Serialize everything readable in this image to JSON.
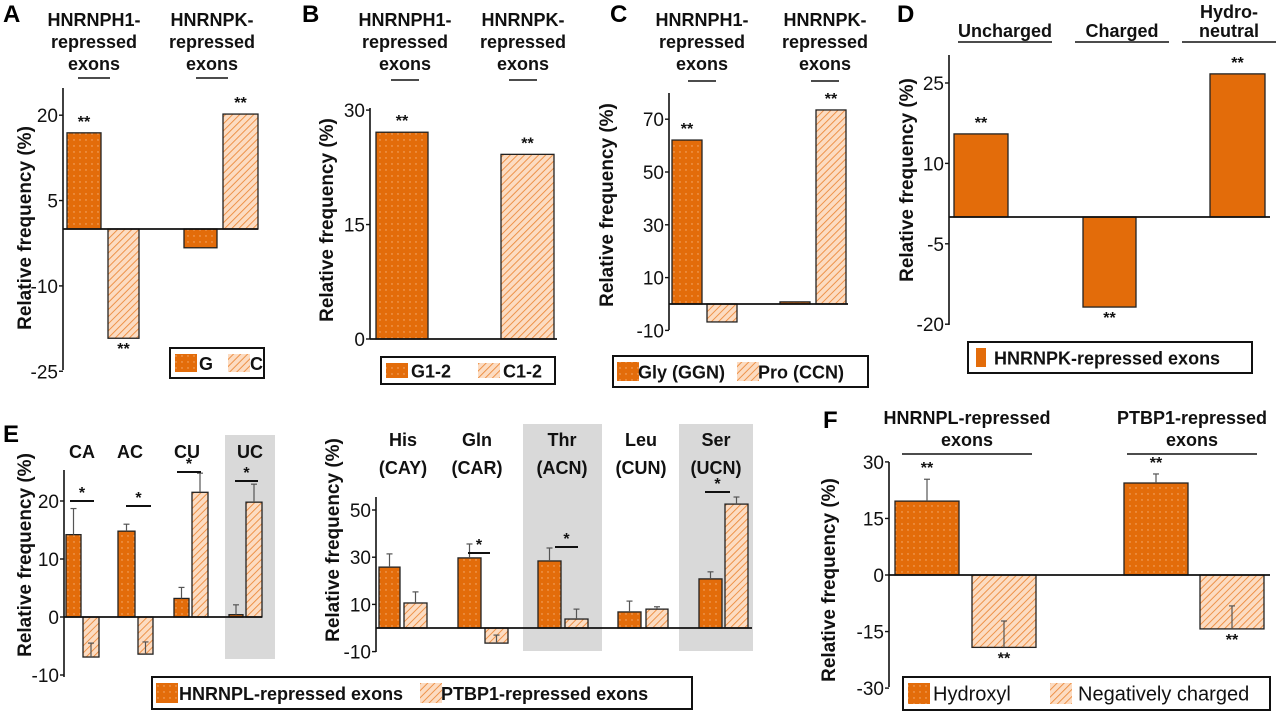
{
  "colors": {
    "orange": "#e36c0a",
    "peach": "#fcdcc2",
    "stripe": "#ec8a3c",
    "band": "#d9d9d9"
  },
  "chart_data": [
    {
      "panel": "A",
      "type": "bar",
      "ylabel": "Relative frequency (%)",
      "yticks": [
        20,
        5,
        -10,
        -25
      ],
      "ylim": [
        -25,
        23
      ],
      "groups": [
        {
          "lines": [
            "HNRNPH1-",
            "repressed",
            "exons"
          ]
        },
        {
          "lines": [
            "HNRNPK-",
            "repressed",
            "exons"
          ]
        }
      ],
      "series": [
        {
          "name": "G",
          "values": [
            16.9,
            -3.3
          ],
          "sig": [
            "**",
            ""
          ]
        },
        {
          "name": "C",
          "values": [
            -19.2,
            20.2
          ],
          "sig": [
            "**",
            "**"
          ]
        }
      ]
    },
    {
      "panel": "B",
      "type": "bar",
      "ylabel": "Relative frequency (%)",
      "yticks": [
        30,
        15,
        0
      ],
      "ylim": [
        0,
        30
      ],
      "groups": [
        {
          "lines": [
            "HNRNPH1-",
            "repressed",
            "exons"
          ]
        },
        {
          "lines": [
            "HNRNPK-",
            "repressed",
            "exons"
          ]
        }
      ],
      "series": [
        {
          "name": "G1-2",
          "values": [
            27.1,
            null
          ],
          "sig": [
            "**",
            ""
          ]
        },
        {
          "name": "C1-2",
          "values": [
            null,
            24.2
          ],
          "sig": [
            "",
            "**"
          ]
        }
      ]
    },
    {
      "panel": "C",
      "type": "bar",
      "ylabel": "Relative frequency (%)",
      "yticks": [
        70,
        50,
        30,
        10,
        -10
      ],
      "ylim": [
        -10,
        80
      ],
      "groups": [
        {
          "lines": [
            "HNRNPH1-",
            "repressed",
            "exons"
          ]
        },
        {
          "lines": [
            "HNRNPK-",
            "repressed",
            "exons"
          ]
        }
      ],
      "series": [
        {
          "name": "Gly (GGN)",
          "values": [
            62.1,
            0.8
          ],
          "sig": [
            "**",
            ""
          ]
        },
        {
          "name": "Pro (CCN)",
          "values": [
            -6.8,
            73.5
          ],
          "sig": [
            "",
            "**"
          ]
        }
      ]
    },
    {
      "panel": "D",
      "type": "bar",
      "ylabel": "Relative frequency (%)",
      "yticks": [
        25,
        10,
        -5,
        -20
      ],
      "ylim": [
        -20,
        30
      ],
      "groups": [
        {
          "lines": [
            "Uncharged"
          ]
        },
        {
          "lines": [
            "Charged"
          ]
        },
        {
          "lines": [
            "Hydro-",
            "neutral"
          ]
        }
      ],
      "series": [
        {
          "name": "HNRNPK-repressed exons",
          "values": [
            15.5,
            -16.8,
            26.7
          ],
          "sig": [
            "**",
            "**",
            "**"
          ]
        }
      ]
    },
    {
      "panel": "E",
      "type": "bar",
      "ylabel": "Relative frequency (%)",
      "yticks": [
        20,
        10,
        0,
        -10
      ],
      "ylim": [
        -10,
        25
      ],
      "groups": [
        {
          "lines": [
            "CA"
          ]
        },
        {
          "lines": [
            "AC"
          ],
          "shaded": true
        },
        {
          "lines": [
            "CU"
          ]
        },
        {
          "lines": [
            "UC"
          ],
          "shaded": true
        }
      ],
      "series": [
        {
          "name": "HNRNPL-repressed exons",
          "values": [
            14.2,
            14.8,
            3.2,
            0.4
          ],
          "errors": [
            4.5,
            1.2,
            1.9,
            1.7
          ]
        },
        {
          "name": "PTBP1-repressed exons",
          "values": [
            -6.9,
            -6.4,
            21.5,
            19.8
          ],
          "errors": [
            2.4,
            2.1,
            3.3,
            3.1
          ]
        }
      ],
      "comparisons": [
        {
          "group": 0,
          "label": "*"
        },
        {
          "group": 1,
          "label": "*"
        },
        {
          "group": 2,
          "label": "*"
        },
        {
          "group": 3,
          "label": "*"
        }
      ]
    },
    {
      "type": "bar",
      "ylabel": "Relative frequency (%)",
      "yticks": [
        50,
        30,
        10,
        -10
      ],
      "ylim": [
        -10,
        55
      ],
      "groups": [
        {
          "lines": [
            "His",
            "(CAY)"
          ]
        },
        {
          "lines": [
            "Gln",
            "(CAR)"
          ]
        },
        {
          "lines": [
            "Thr",
            "(ACN)"
          ],
          "shaded": true
        },
        {
          "lines": [
            "Leu",
            "(CUN)"
          ]
        },
        {
          "lines": [
            "Ser",
            "(UCN)"
          ],
          "shaded": true
        }
      ],
      "series": [
        {
          "name": "HNRNPL-repressed exons",
          "values": [
            25.8,
            29.7,
            28.4,
            6.8,
            20.8
          ],
          "errors": [
            5.6,
            5.9,
            5.5,
            4.6,
            3.0
          ]
        },
        {
          "name": "PTBP1-repressed exons",
          "values": [
            10.6,
            -6.4,
            3.8,
            8.0,
            52.5
          ],
          "errors": [
            4.7,
            3.4,
            4.2,
            1.0,
            3.0
          ]
        }
      ],
      "comparisons": [
        {
          "group": 1,
          "label": "*"
        },
        {
          "group": 2,
          "label": "*"
        },
        {
          "group": 4,
          "label": "*"
        }
      ]
    },
    {
      "panel": "F",
      "type": "bar",
      "ylabel": "Relative frequency (%)",
      "yticks": [
        30,
        15,
        0,
        -15,
        -30
      ],
      "ylim": [
        -30,
        30
      ],
      "groups": [
        {
          "lines": [
            "HNRNPL-repressed",
            "exons"
          ]
        },
        {
          "lines": [
            "PTBP1-repressed",
            "exons"
          ]
        }
      ],
      "series": [
        {
          "name": "Hydroxyl",
          "values": [
            19.6,
            24.4
          ],
          "errors": [
            5.8,
            2.4
          ],
          "sig": [
            "**",
            "**"
          ]
        },
        {
          "name": "Negatively charged",
          "values": [
            -19.2,
            -14.3
          ],
          "errors": [
            7.0,
            6.1
          ],
          "sig": [
            "**",
            "**"
          ]
        }
      ]
    }
  ]
}
